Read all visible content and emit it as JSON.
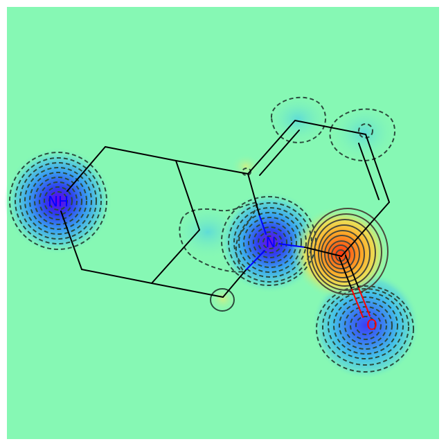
{
  "figure": {
    "kind": "similarity-map",
    "colormap": "jet",
    "colors": {
      "background": "#86F8B4",
      "frame": "#FFFFFF",
      "bond": "#000000",
      "nitrogen": "#0000FF",
      "oxygen": "#FF0000",
      "contour": "#2B4A3C"
    }
  },
  "molecule": {
    "atoms": [
      {
        "id": "nh",
        "label": "NH",
        "element": "N"
      },
      {
        "id": "n",
        "label": "N",
        "element": "N"
      },
      {
        "id": "o",
        "label": "O",
        "element": "O"
      }
    ]
  }
}
